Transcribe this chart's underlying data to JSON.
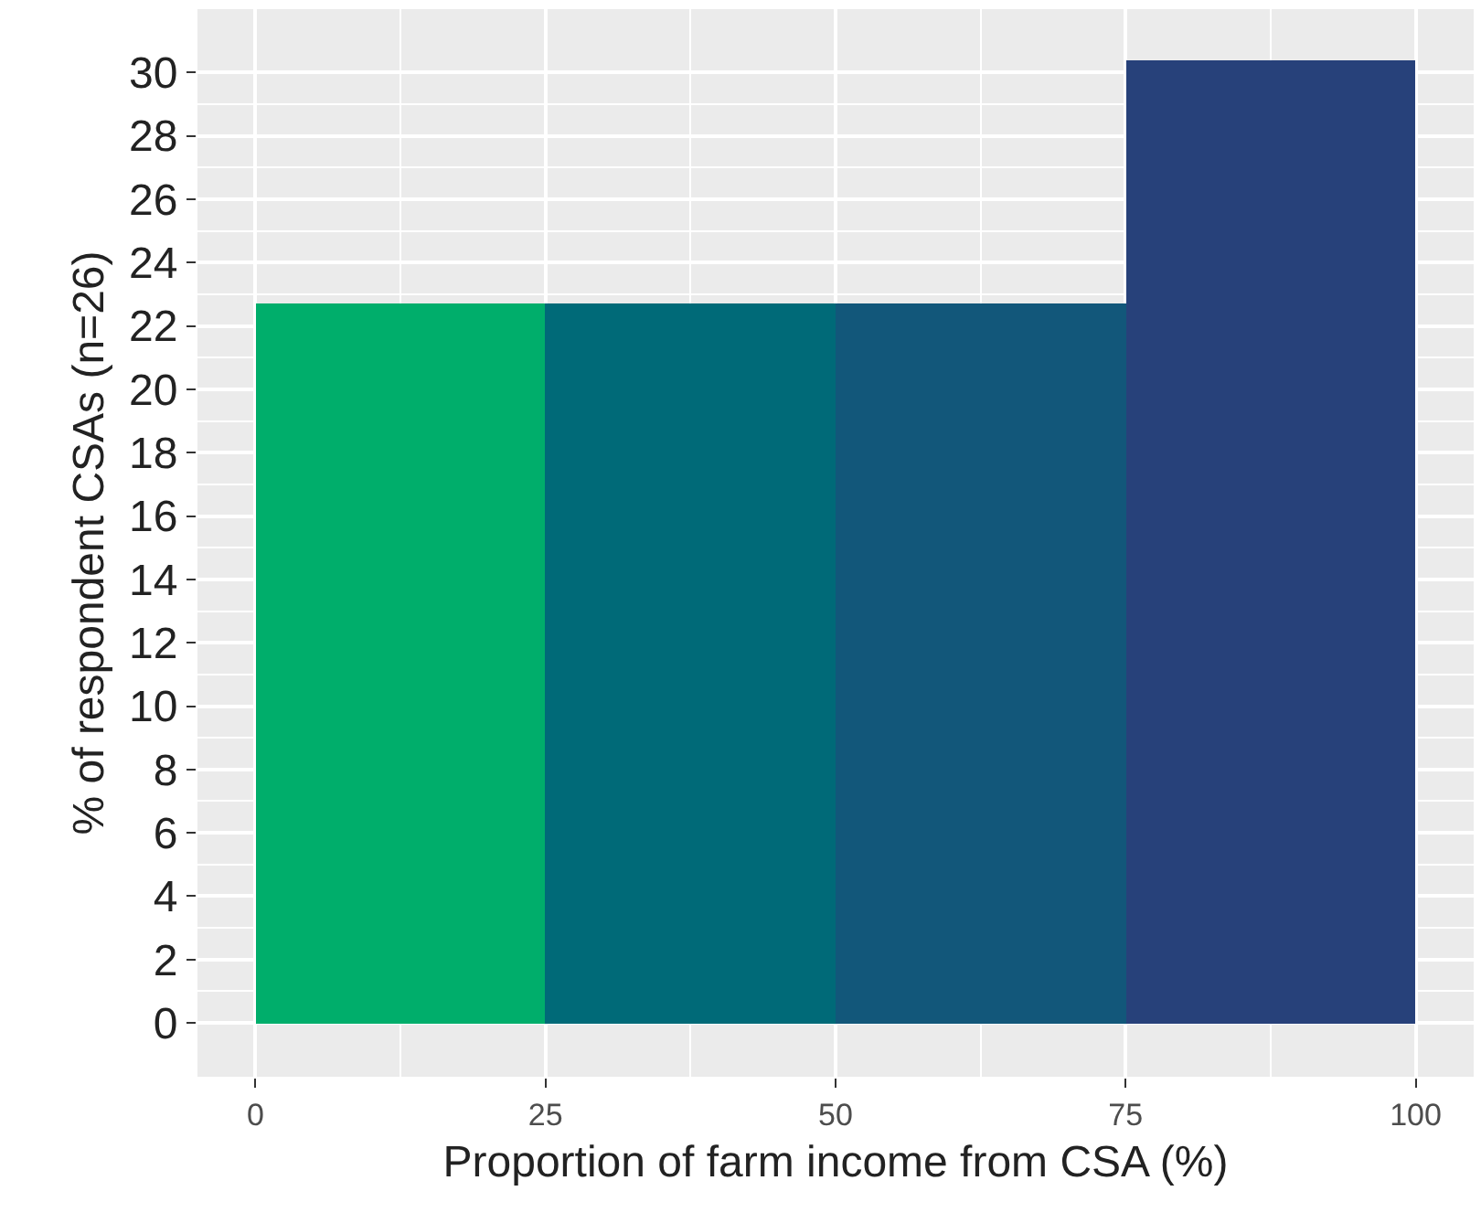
{
  "chart_data": {
    "type": "histogram",
    "xlabel": "Proportion of farm income from CSA (%)",
    "ylabel": "% of respondent CSAs (n=26)",
    "bins": [
      0,
      25,
      50,
      75,
      100
    ],
    "values": [
      22.7,
      22.7,
      22.7,
      30.4
    ],
    "colors": [
      "#00ae6b",
      "#006a78",
      "#12577a",
      "#27417a"
    ],
    "xlim": [
      -5,
      105
    ],
    "xticks": [
      0,
      25,
      50,
      75,
      100
    ],
    "ylim": [
      -1.7,
      32
    ],
    "yticks": [
      0,
      2,
      4,
      6,
      8,
      10,
      12,
      14,
      16,
      18,
      20,
      22,
      24,
      26,
      28,
      30
    ],
    "grid": true
  }
}
